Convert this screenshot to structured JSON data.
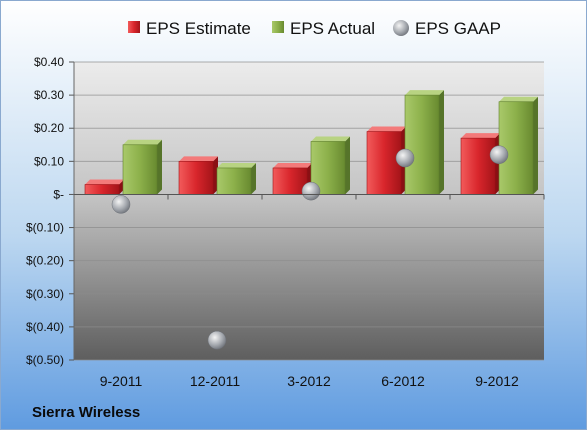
{
  "company": "Sierra Wireless",
  "legend": [
    {
      "label": "EPS Estimate",
      "color": "#d9262c",
      "marker": "cube"
    },
    {
      "label": "EPS Actual",
      "color": "#8cb04a",
      "marker": "cube"
    },
    {
      "label": "EPS GAAP",
      "color": "#9aa0a8",
      "marker": "sphere"
    }
  ],
  "chart_data": {
    "type": "bar",
    "categories": [
      "9-2011",
      "12-2011",
      "3-2012",
      "6-2012",
      "9-2012"
    ],
    "series": [
      {
        "name": "EPS Estimate",
        "type": "bar",
        "color": "#d9262c",
        "values": [
          0.03,
          0.1,
          0.08,
          0.19,
          0.17
        ]
      },
      {
        "name": "EPS Actual",
        "type": "bar",
        "color": "#8cb04a",
        "values": [
          0.15,
          0.08,
          0.16,
          0.3,
          0.28
        ]
      },
      {
        "name": "EPS GAAP",
        "type": "scatter",
        "color": "#9aa0a8",
        "values": [
          -0.03,
          -0.44,
          0.01,
          0.11,
          0.12
        ]
      }
    ],
    "ylim": [
      -0.5,
      0.4
    ],
    "yticks": [
      0.4,
      0.3,
      0.2,
      0.1,
      0.0,
      -0.1,
      -0.2,
      -0.3,
      -0.4,
      -0.5
    ],
    "ytick_labels": [
      "$0.40",
      "$0.30",
      "$0.20",
      "$0.10",
      "$-",
      "$(0.10)",
      "$(0.20)",
      "$(0.30)",
      "$(0.40)",
      "$(0.50)"
    ],
    "grid": true,
    "legend_position": "top"
  }
}
